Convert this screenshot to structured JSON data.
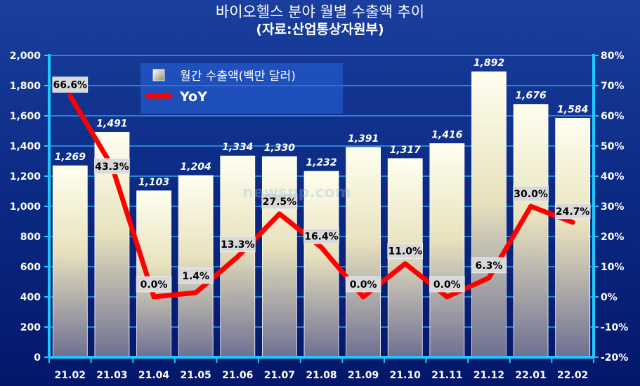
{
  "title": "바이오헬스 분야 월별 수출액 추이",
  "subtitle": "(자료:산업통상자원부)",
  "watermark": "newsnp.com",
  "chart_data": {
    "type": "bar",
    "categories": [
      "21.02",
      "21.03",
      "21.04",
      "21.05",
      "21.06",
      "21.07",
      "21.08",
      "21.09",
      "21.10",
      "21.11",
      "21.12",
      "22.01",
      "22.02"
    ],
    "series": [
      {
        "name": "월간 수출액(백만 달러)",
        "type": "bar",
        "axis": "left",
        "values": [
          1269,
          1491,
          1103,
          1204,
          1334,
          1330,
          1232,
          1391,
          1317,
          1416,
          1892,
          1676,
          1584
        ],
        "labels": [
          "1,269",
          "1,491",
          "1,103",
          "1,204",
          "1,334",
          "1,330",
          "1,232",
          "1,391",
          "1,317",
          "1,416",
          "1,892",
          "1,676",
          "1,584"
        ]
      },
      {
        "name": "YoY",
        "type": "line",
        "axis": "right",
        "color": "#ff0000",
        "values": [
          66.6,
          43.3,
          0.0,
          1.4,
          13.3,
          27.5,
          16.4,
          0.0,
          11.0,
          0.0,
          6.3,
          30.0,
          24.7
        ],
        "labels": [
          "66.6%",
          "43.3%",
          "0.0%",
          "1.4%",
          "13.3%",
          "27.5%",
          "16.4%",
          "0.0%",
          "11.0%",
          "0.0%",
          "6.3%",
          "30.0%",
          "24.7%"
        ]
      }
    ],
    "y_left": {
      "min": 0,
      "max": 2000,
      "ticks": [
        "0",
        "200",
        "400",
        "600",
        "800",
        "1,000",
        "1,200",
        "1,400",
        "1,600",
        "1,800",
        "2,000"
      ]
    },
    "y_right": {
      "min": -20,
      "max": 80,
      "ticks": [
        "-20%",
        "-10%",
        "0%",
        "10%",
        "20%",
        "30%",
        "40%",
        "50%",
        "60%",
        "70%",
        "80%"
      ]
    },
    "grid": true,
    "legend_position": "top-left",
    "colors": {
      "axis": "#1ec8ff",
      "grid": "#2f9fe6",
      "line": "#ff0000",
      "label_box": "#d9d9d9"
    }
  }
}
